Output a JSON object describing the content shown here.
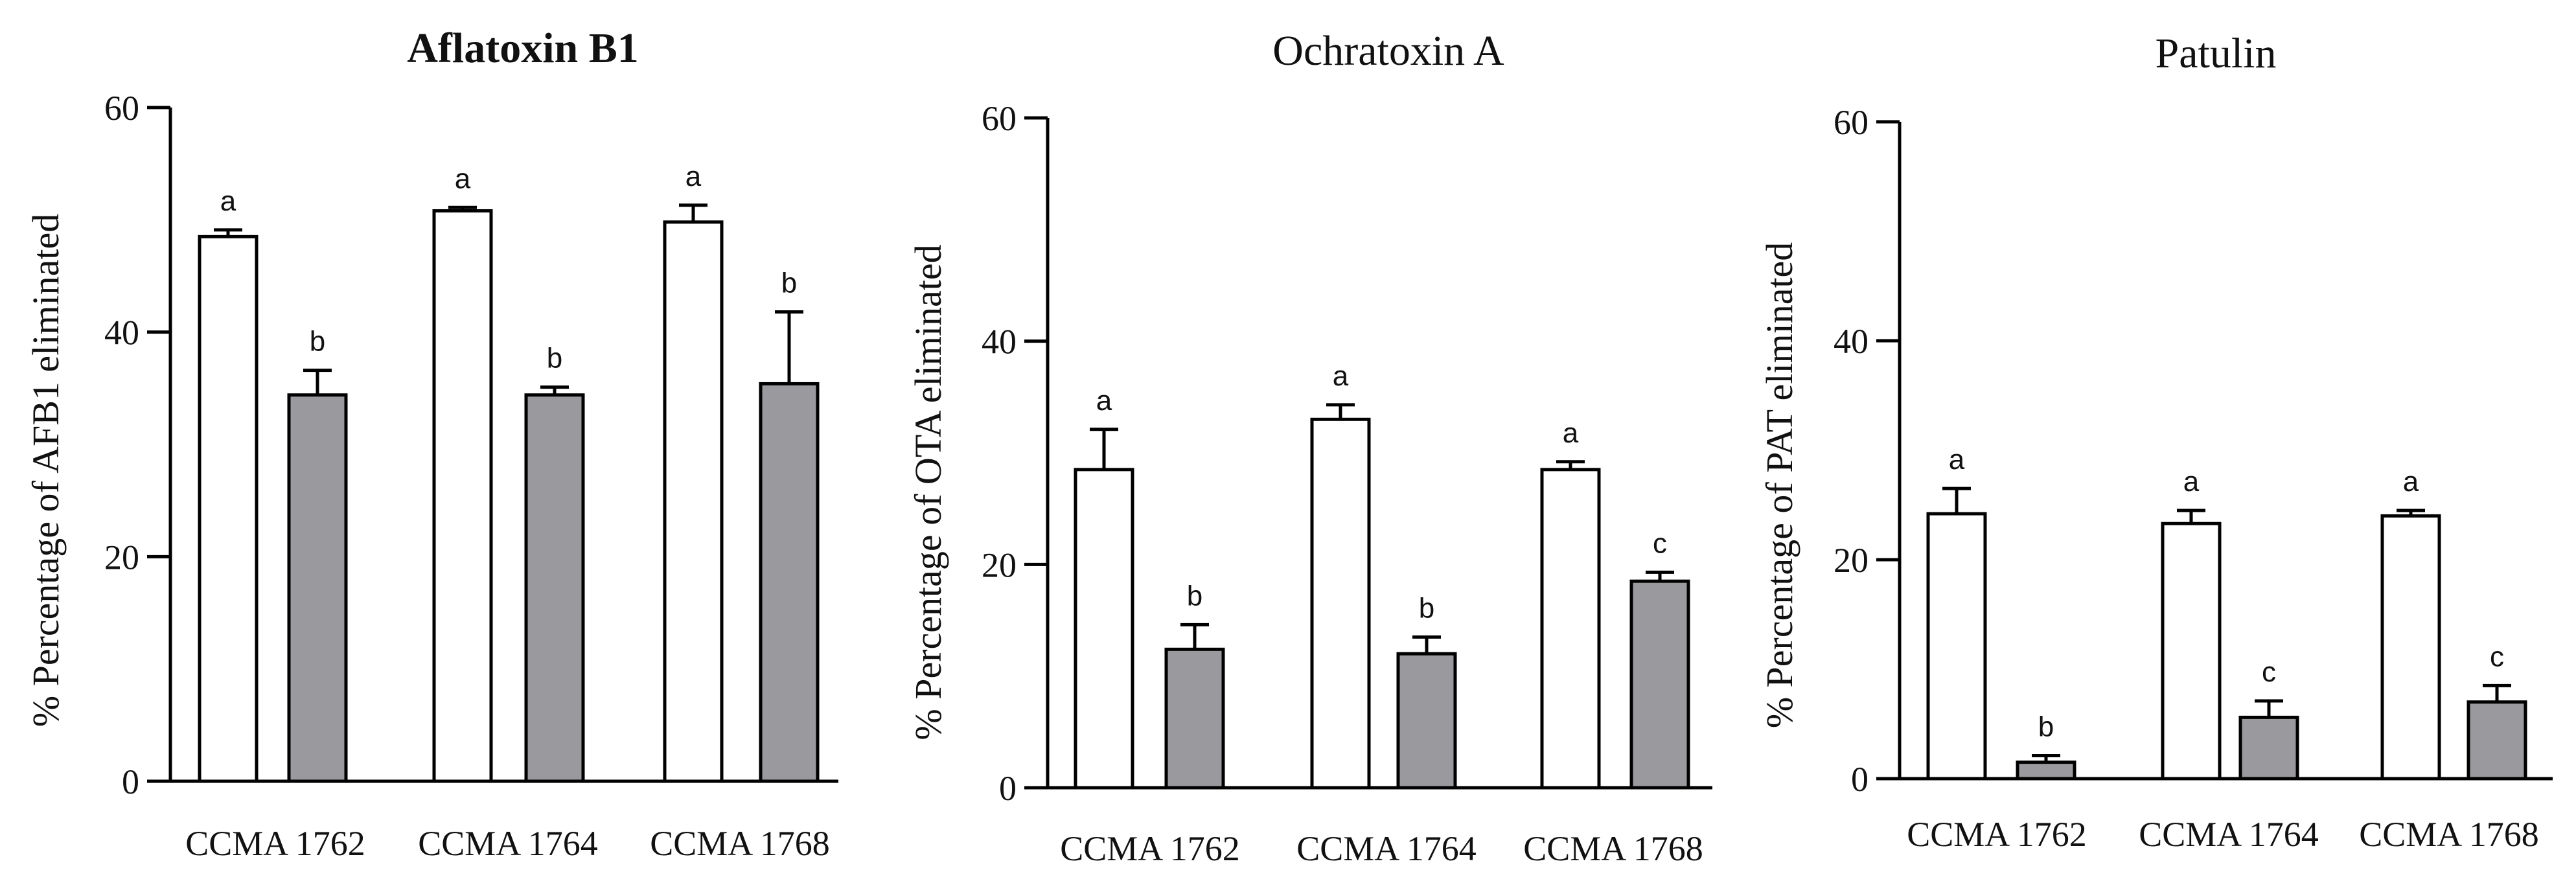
{
  "chart_data": [
    {
      "type": "bar",
      "title": "Aflatoxin B1",
      "title_bold": true,
      "ylabel": "% Percentage of AFB1 eliminated",
      "xlabel": "",
      "ylim": [
        0,
        60
      ],
      "yticks": [
        0,
        20,
        40,
        60
      ],
      "categories": [
        "CCMA 1762",
        "CCMA 1764",
        "CCMA 1768"
      ],
      "series": [
        {
          "name": "white",
          "color": "#ffffff",
          "values": [
            48.5,
            50.8,
            49.8
          ],
          "errors": [
            0.6,
            0.3,
            1.5
          ],
          "letters": [
            "a",
            "a",
            "a"
          ]
        },
        {
          "name": "gray",
          "color": "#9a999d",
          "values": [
            34.4,
            34.4,
            35.4
          ],
          "errors": [
            2.2,
            0.7,
            6.4
          ],
          "letters": [
            "b",
            "b",
            "b"
          ]
        }
      ]
    },
    {
      "type": "bar",
      "title": "Ochratoxin A",
      "title_bold": false,
      "ylabel": "% Percentage of OTA eliminated",
      "xlabel": "",
      "ylim": [
        0,
        60
      ],
      "yticks": [
        0,
        20,
        40,
        60
      ],
      "categories": [
        "CCMA 1762",
        "CCMA 1764",
        "CCMA 1768"
      ],
      "series": [
        {
          "name": "white",
          "color": "#ffffff",
          "values": [
            28.5,
            33.0,
            28.5
          ],
          "errors": [
            3.6,
            1.3,
            0.7
          ],
          "letters": [
            "a",
            "a",
            "a"
          ]
        },
        {
          "name": "gray",
          "color": "#9a999d",
          "values": [
            12.4,
            12.0,
            18.5
          ],
          "errors": [
            2.2,
            1.5,
            0.8
          ],
          "letters": [
            "b",
            "b",
            "c"
          ]
        }
      ]
    },
    {
      "type": "bar",
      "title": "Patulin",
      "title_bold": false,
      "ylabel": "% Percentage of PAT eliminated",
      "xlabel": "",
      "ylim": [
        0,
        60
      ],
      "yticks": [
        0,
        20,
        40,
        60
      ],
      "categories": [
        "CCMA 1762",
        "CCMA 1764",
        "CCMA 1768"
      ],
      "series": [
        {
          "name": "white",
          "color": "#ffffff",
          "values": [
            24.2,
            23.3,
            24.0
          ],
          "errors": [
            2.3,
            1.2,
            0.5
          ],
          "letters": [
            "a",
            "a",
            "a"
          ]
        },
        {
          "name": "gray",
          "color": "#9a999d",
          "values": [
            1.5,
            5.6,
            7.0
          ],
          "errors": [
            0.6,
            1.5,
            1.5
          ],
          "letters": [
            "b",
            "c",
            "c"
          ]
        }
      ]
    }
  ]
}
